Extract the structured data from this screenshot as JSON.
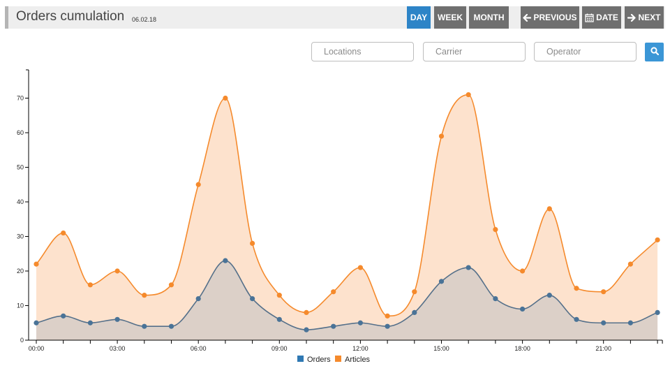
{
  "header": {
    "title": "Orders cumulation",
    "date": "06.02.18"
  },
  "toolbar": {
    "day_label": "DAY",
    "week_label": "WEEK",
    "month_label": "MONTH",
    "previous_label": "PREVIOUS",
    "date_label": "DATE",
    "next_label": "NEXT"
  },
  "filters": {
    "locations_placeholder": "Locations",
    "carrier_placeholder": "Carrier",
    "operator_placeholder": "Operator"
  },
  "colors": {
    "orders": "#2f78b3",
    "articles": "#f58a2c",
    "active": "#2d84c7",
    "grey": "#6f6f6f"
  },
  "icons": {
    "previous": "arrow-left-icon",
    "date": "calendar-icon",
    "next": "arrow-right-icon",
    "search": "search-icon"
  },
  "chart_data": {
    "type": "area",
    "x": [
      "00:00",
      "01:00",
      "02:00",
      "03:00",
      "04:00",
      "05:00",
      "06:00",
      "07:00",
      "08:00",
      "09:00",
      "10:00",
      "11:00",
      "12:00",
      "13:00",
      "14:00",
      "15:00",
      "16:00",
      "17:00",
      "18:00",
      "19:00",
      "20:00",
      "21:00",
      "22:00",
      "23:00"
    ],
    "xtick_labels": [
      "00:00",
      "03:00",
      "06:00",
      "09:00",
      "12:00",
      "15:00",
      "18:00",
      "21:00"
    ],
    "yticks": [
      0,
      10,
      20,
      30,
      40,
      50,
      60,
      70
    ],
    "ylim": [
      0,
      78
    ],
    "grid": false,
    "legend": "bottom-center",
    "title": "",
    "xlabel": "",
    "ylabel": "",
    "series": [
      {
        "name": "Orders",
        "values": [
          5,
          7,
          5,
          6,
          4,
          4,
          12,
          23,
          12,
          6,
          3,
          4,
          5,
          4,
          8,
          17,
          21,
          12,
          9,
          13,
          6,
          5,
          5,
          8
        ]
      },
      {
        "name": "Articles",
        "values": [
          22,
          31,
          16,
          20,
          13,
          16,
          45,
          70,
          28,
          13,
          8,
          14,
          21,
          7,
          14,
          59,
          71,
          32,
          20,
          38,
          15,
          14,
          22,
          29
        ]
      }
    ]
  }
}
